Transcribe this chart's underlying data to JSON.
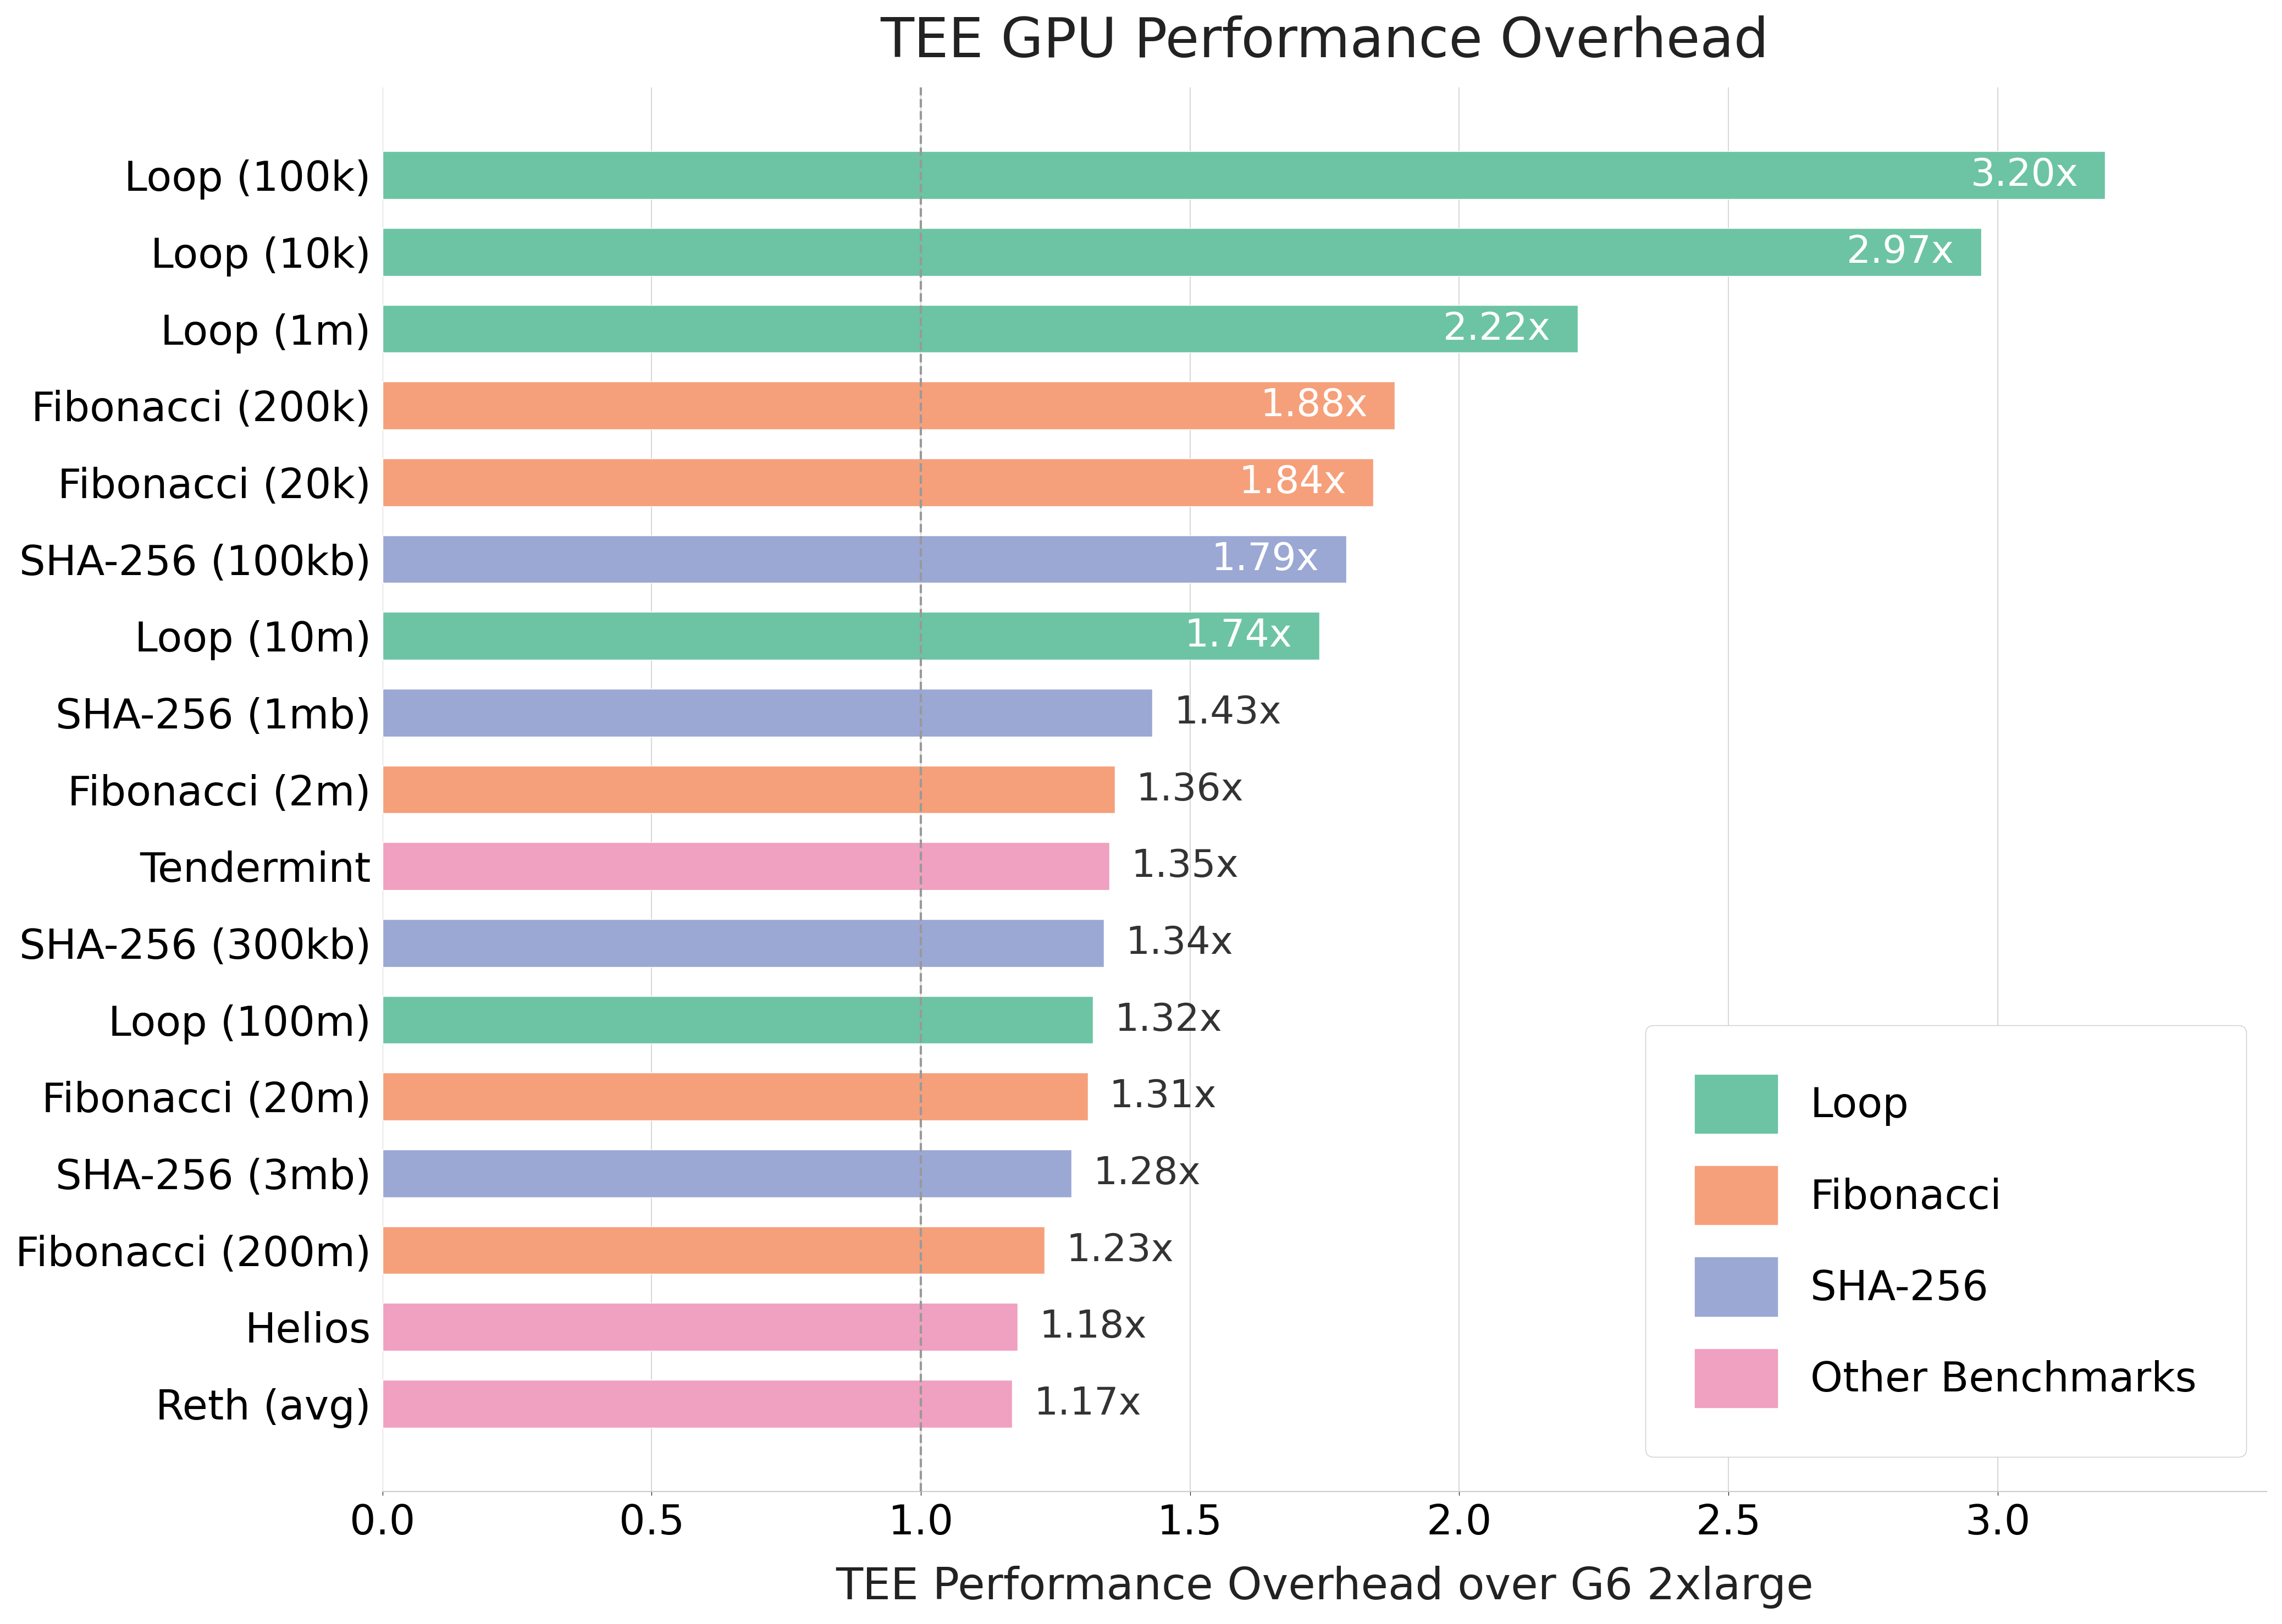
{
  "title": "TEE GPU Performance Overhead",
  "xlabel": "TEE Performance Overhead over G6 2xlarge",
  "categories": [
    "Loop (100k)",
    "Loop (10k)",
    "Loop (1m)",
    "Fibonacci (200k)",
    "Fibonacci (20k)",
    "SHA-256 (100kb)",
    "Loop (10m)",
    "SHA-256 (1mb)",
    "Fibonacci (2m)",
    "Tendermint",
    "SHA-256 (300kb)",
    "Loop (100m)",
    "Fibonacci (20m)",
    "SHA-256 (3mb)",
    "Fibonacci (200m)",
    "Helios",
    "Reth (avg)"
  ],
  "values": [
    3.2,
    2.97,
    2.22,
    1.88,
    1.84,
    1.79,
    1.74,
    1.43,
    1.36,
    1.35,
    1.34,
    1.32,
    1.31,
    1.28,
    1.23,
    1.18,
    1.17
  ],
  "colors": [
    "#6cc4a4",
    "#6cc4a4",
    "#6cc4a4",
    "#f5a07a",
    "#f5a07a",
    "#9ba8d4",
    "#6cc4a4",
    "#9ba8d4",
    "#f5a07a",
    "#f0a0c0",
    "#9ba8d4",
    "#6cc4a4",
    "#f5a07a",
    "#9ba8d4",
    "#f5a07a",
    "#f0a0c0",
    "#f0a0c0"
  ],
  "legend_labels": [
    "Loop",
    "Fibonacci",
    "SHA-256",
    "Other Benchmarks"
  ],
  "legend_colors": [
    "#6cc4a4",
    "#f5a07a",
    "#9ba8d4",
    "#f0a0c0"
  ],
  "xlim": [
    0,
    3.5
  ],
  "xticks": [
    0.0,
    0.5,
    1.0,
    1.5,
    2.0,
    2.5,
    3.0
  ],
  "vline_x": 1.0,
  "background_color": "#ffffff",
  "grid_color": "#d8d8d8",
  "title_fontsize": 72,
  "label_fontsize": 58,
  "tick_fontsize": 54,
  "bar_label_fontsize": 50,
  "legend_fontsize": 54,
  "bar_height": 0.62,
  "white_label_threshold": 1.74
}
